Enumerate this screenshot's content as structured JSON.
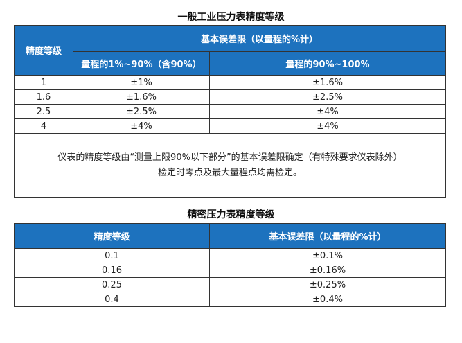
{
  "table1": {
    "title": "一般工业压力表精度等级",
    "header_grade": "精度等级",
    "header_limit": "基本误差限（以量程的%计）",
    "sub_range_low": "量程的1%~90%（含90%）",
    "sub_range_high": "量程的90%~100%",
    "rows": [
      {
        "grade": "1",
        "low": "±1%",
        "high": "±1.6%"
      },
      {
        "grade": "1.6",
        "low": "±1.6%",
        "high": "±2.5%"
      },
      {
        "grade": "2.5",
        "low": "±2.5%",
        "high": "±4%"
      },
      {
        "grade": "4",
        "low": "±4%",
        "high": "±4%"
      }
    ],
    "note_line1": "仪表的精度等级由“测量上限90%以下部分”的基本误差限确定（有特殊要求仪表除外）",
    "note_line2": "检定时零点及最大量程点均需检定。"
  },
  "table2": {
    "title": "精密压力表精度等级",
    "header_grade": "精度等级",
    "header_limit": "基本误差限（以量程的%计）",
    "rows": [
      {
        "grade": "0.1",
        "limit": "±0.1%"
      },
      {
        "grade": "0.16",
        "limit": "±0.16%"
      },
      {
        "grade": "0.25",
        "limit": "±0.25%"
      },
      {
        "grade": "0.4",
        "limit": "±0.4%"
      }
    ]
  },
  "colors": {
    "header_bg": "#1d72be",
    "header_text": "#ffffff",
    "border": "#333333"
  }
}
